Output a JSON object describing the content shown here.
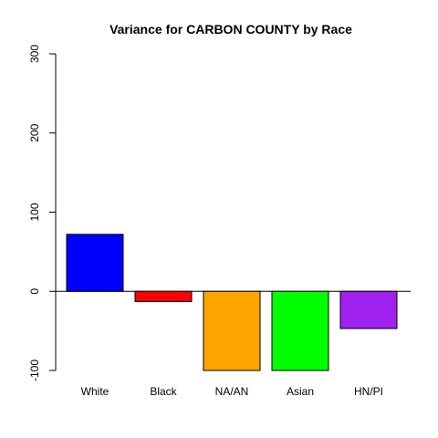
{
  "chart_data": {
    "type": "bar",
    "title": "Variance for CARBON COUNTY by Race",
    "xlabel": "",
    "ylabel": "",
    "categories": [
      "White",
      "Black",
      "NA/AN",
      "Asian",
      "HN/PI"
    ],
    "values": [
      72,
      -13,
      -100,
      -100,
      -47
    ],
    "colors": [
      "#0000FF",
      "#FF0000",
      "#FFA500",
      "#00FF00",
      "#A020F0"
    ],
    "ylim": [
      -100,
      300
    ],
    "yticks": [
      -100,
      0,
      100,
      200,
      300
    ],
    "ytick_labels": [
      "-100",
      "0",
      "100",
      "200",
      "300"
    ],
    "zero_line": true,
    "grid": false,
    "legend": "none"
  }
}
